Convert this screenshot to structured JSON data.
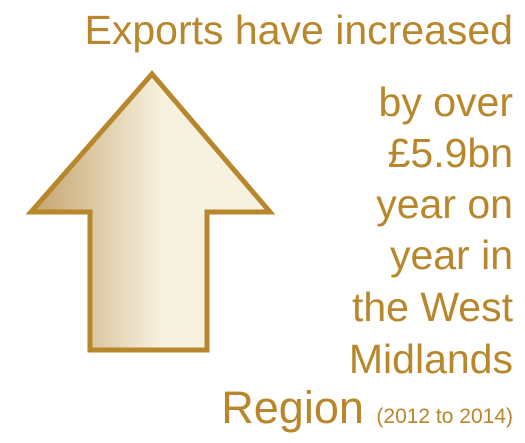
{
  "colors": {
    "text": "#b8862b",
    "arrow_stroke": "#b8862b",
    "arrow_fill_light": "#f7f1df",
    "arrow_fill_dark": "#c4a36d"
  },
  "icon": "up-arrow-icon",
  "headline": {
    "line1": "Exports have increased",
    "line2": "by over",
    "line3": "£5.9bn",
    "line4": "year on",
    "line5": "year in",
    "line6": "the West",
    "line7": "Midlands",
    "line8": "Region",
    "period": "(2012 to 2014)"
  }
}
